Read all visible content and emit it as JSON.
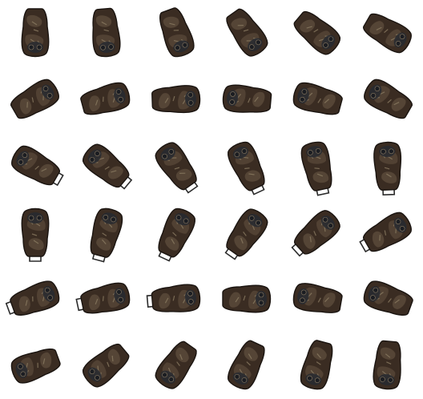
{
  "sheet": {
    "columns": 6,
    "rows": 6,
    "background": "#ffffff",
    "palette": {
      "outline": "#1a1410",
      "body": "#3a2c22",
      "body_light": "#5b4a3a",
      "highlight": "#8a7a62",
      "panel": "#272a30",
      "strap": "#2b2b2b"
    },
    "frames": [
      {
        "heading_deg": -90,
        "strap": false
      },
      {
        "heading_deg": -95,
        "strap": false
      },
      {
        "heading_deg": -110,
        "strap": false
      },
      {
        "heading_deg": -125,
        "strap": false
      },
      {
        "heading_deg": -140,
        "strap": false
      },
      {
        "heading_deg": -150,
        "strap": false
      },
      {
        "heading_deg": 150,
        "strap": false
      },
      {
        "heading_deg": 165,
        "strap": false
      },
      {
        "heading_deg": 178,
        "strap": false
      },
      {
        "heading_deg": 5,
        "strap": false
      },
      {
        "heading_deg": 15,
        "strap": false
      },
      {
        "heading_deg": 30,
        "strap": false
      },
      {
        "heading_deg": 30,
        "strap": true
      },
      {
        "heading_deg": 40,
        "strap": true
      },
      {
        "heading_deg": 55,
        "strap": true
      },
      {
        "heading_deg": 65,
        "strap": true
      },
      {
        "heading_deg": 78,
        "strap": true
      },
      {
        "heading_deg": 88,
        "strap": true
      },
      {
        "heading_deg": 90,
        "strap": true
      },
      {
        "heading_deg": 105,
        "strap": true
      },
      {
        "heading_deg": 115,
        "strap": true
      },
      {
        "heading_deg": 125,
        "strap": true
      },
      {
        "heading_deg": 138,
        "strap": true
      },
      {
        "heading_deg": 150,
        "strap": true
      },
      {
        "heading_deg": 160,
        "strap": true
      },
      {
        "heading_deg": 168,
        "strap": true
      },
      {
        "heading_deg": 175,
        "strap": true
      },
      {
        "heading_deg": 180,
        "strap": false
      },
      {
        "heading_deg": 10,
        "strap": false
      },
      {
        "heading_deg": 20,
        "strap": false
      },
      {
        "heading_deg": -20,
        "strap": false
      },
      {
        "heading_deg": -40,
        "strap": false
      },
      {
        "heading_deg": -55,
        "strap": false
      },
      {
        "heading_deg": -65,
        "strap": false
      },
      {
        "heading_deg": -75,
        "strap": false
      },
      {
        "heading_deg": -85,
        "strap": false
      }
    ]
  }
}
